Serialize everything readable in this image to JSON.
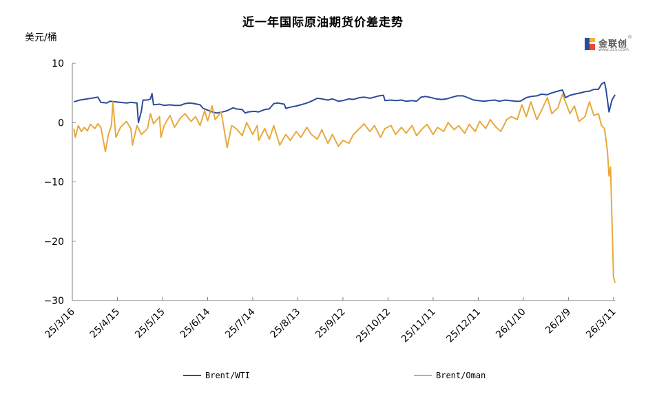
{
  "title": "近一年国际原油期货价差走势",
  "unit_label": "美元/桶",
  "logo": {
    "name": "金联创",
    "sub": "www.315i.com",
    "reg": "®",
    "icon": "jlc-logo-icon"
  },
  "colors": {
    "brent_wti": "#2B4C9B",
    "brent_oman": "#E8A93A",
    "axis": "#808080"
  },
  "chart_data": {
    "type": "line",
    "title": "近一年国际原油期货价差走势",
    "ylabel": "美元/桶",
    "xlabel": "",
    "ylim": [
      -30,
      10
    ],
    "yticks": [
      10,
      0,
      -10,
      -20,
      -30
    ],
    "xlim": [
      "2025-03-16",
      "2026-03-12"
    ],
    "xticks": [
      "25/3/16",
      "25/4/15",
      "25/5/15",
      "25/6/14",
      "25/7/14",
      "25/8/13",
      "25/9/12",
      "25/10/12",
      "25/11/11",
      "25/12/11",
      "26/1/10",
      "26/2/9",
      "26/3/11"
    ],
    "grid": false,
    "legend_position": "bottom",
    "series": [
      {
        "name": "Brent/WTI",
        "color": "#2B4C9B",
        "points": [
          [
            "2025-03-17",
            3.5
          ],
          [
            "2025-03-21",
            3.8
          ],
          [
            "2025-03-26",
            4.0
          ],
          [
            "2025-03-31",
            4.2
          ],
          [
            "2025-04-02",
            4.3
          ],
          [
            "2025-04-04",
            3.4
          ],
          [
            "2025-04-08",
            3.3
          ],
          [
            "2025-04-10",
            3.6
          ],
          [
            "2025-04-14",
            3.5
          ],
          [
            "2025-04-17",
            3.4
          ],
          [
            "2025-04-21",
            3.3
          ],
          [
            "2025-04-24",
            3.4
          ],
          [
            "2025-04-28",
            3.3
          ],
          [
            "2025-04-29",
            0.0
          ],
          [
            "2025-05-01",
            2.0
          ],
          [
            "2025-05-02",
            3.8
          ],
          [
            "2025-05-05",
            3.8
          ],
          [
            "2025-05-07",
            4.0
          ],
          [
            "2025-05-08",
            4.9
          ],
          [
            "2025-05-09",
            3.0
          ],
          [
            "2025-05-13",
            3.1
          ],
          [
            "2025-05-16",
            2.9
          ],
          [
            "2025-05-20",
            3.0
          ],
          [
            "2025-05-23",
            2.9
          ],
          [
            "2025-05-27",
            2.9
          ],
          [
            "2025-05-30",
            3.2
          ],
          [
            "2025-06-02",
            3.3
          ],
          [
            "2025-06-05",
            3.2
          ],
          [
            "2025-06-09",
            3.0
          ],
          [
            "2025-06-11",
            2.4
          ],
          [
            "2025-06-13",
            2.2
          ],
          [
            "2025-06-17",
            1.8
          ],
          [
            "2025-06-20",
            1.6
          ],
          [
            "2025-06-24",
            1.8
          ],
          [
            "2025-06-27",
            2.0
          ],
          [
            "2025-07-01",
            2.5
          ],
          [
            "2025-07-03",
            2.3
          ],
          [
            "2025-07-07",
            2.2
          ],
          [
            "2025-07-09",
            1.6
          ],
          [
            "2025-07-11",
            1.8
          ],
          [
            "2025-07-15",
            1.9
          ],
          [
            "2025-07-18",
            1.8
          ],
          [
            "2025-07-22",
            2.2
          ],
          [
            "2025-07-25",
            2.3
          ],
          [
            "2025-07-28",
            3.2
          ],
          [
            "2025-07-31",
            3.3
          ],
          [
            "2025-08-04",
            3.1
          ],
          [
            "2025-08-05",
            2.4
          ],
          [
            "2025-08-08",
            2.6
          ],
          [
            "2025-08-12",
            2.8
          ],
          [
            "2025-08-15",
            3.0
          ],
          [
            "2025-08-19",
            3.3
          ],
          [
            "2025-08-22",
            3.6
          ],
          [
            "2025-08-26",
            4.1
          ],
          [
            "2025-08-29",
            4.0
          ],
          [
            "2025-09-02",
            3.8
          ],
          [
            "2025-09-05",
            4.0
          ],
          [
            "2025-09-09",
            3.6
          ],
          [
            "2025-09-12",
            3.7
          ],
          [
            "2025-09-16",
            4.0
          ],
          [
            "2025-09-19",
            3.9
          ],
          [
            "2025-09-23",
            4.2
          ],
          [
            "2025-09-26",
            4.3
          ],
          [
            "2025-09-30",
            4.1
          ],
          [
            "2025-10-03",
            4.3
          ],
          [
            "2025-10-06",
            4.5
          ],
          [
            "2025-10-09",
            4.6
          ],
          [
            "2025-10-10",
            3.7
          ],
          [
            "2025-10-14",
            3.8
          ],
          [
            "2025-10-17",
            3.7
          ],
          [
            "2025-10-21",
            3.8
          ],
          [
            "2025-10-24",
            3.6
          ],
          [
            "2025-10-28",
            3.7
          ],
          [
            "2025-10-31",
            3.6
          ],
          [
            "2025-11-03",
            4.3
          ],
          [
            "2025-11-06",
            4.4
          ],
          [
            "2025-11-10",
            4.2
          ],
          [
            "2025-11-13",
            4.0
          ],
          [
            "2025-11-17",
            3.9
          ],
          [
            "2025-11-20",
            4.0
          ],
          [
            "2025-11-24",
            4.3
          ],
          [
            "2025-11-27",
            4.5
          ],
          [
            "2025-12-01",
            4.5
          ],
          [
            "2025-12-04",
            4.2
          ],
          [
            "2025-12-08",
            3.8
          ],
          [
            "2025-12-11",
            3.7
          ],
          [
            "2025-12-15",
            3.6
          ],
          [
            "2025-12-18",
            3.7
          ],
          [
            "2025-12-22",
            3.8
          ],
          [
            "2025-12-25",
            3.6
          ],
          [
            "2025-12-29",
            3.8
          ],
          [
            "2026-01-01",
            3.7
          ],
          [
            "2026-01-05",
            3.6
          ],
          [
            "2026-01-08",
            3.6
          ],
          [
            "2026-01-12",
            4.2
          ],
          [
            "2026-01-15",
            4.4
          ],
          [
            "2026-01-19",
            4.5
          ],
          [
            "2026-01-22",
            4.8
          ],
          [
            "2026-01-26",
            4.7
          ],
          [
            "2026-01-29",
            5.0
          ],
          [
            "2026-02-02",
            5.3
          ],
          [
            "2026-02-05",
            5.5
          ],
          [
            "2026-02-07",
            4.2
          ],
          [
            "2026-02-10",
            4.6
          ],
          [
            "2026-02-13",
            4.8
          ],
          [
            "2026-02-17",
            5.0
          ],
          [
            "2026-02-20",
            5.2
          ],
          [
            "2026-02-23",
            5.3
          ],
          [
            "2026-02-26",
            5.6
          ],
          [
            "2026-03-01",
            5.6
          ],
          [
            "2026-03-03",
            6.5
          ],
          [
            "2026-03-05",
            6.8
          ],
          [
            "2026-03-06",
            5.6
          ],
          [
            "2026-03-08",
            1.8
          ],
          [
            "2026-03-10",
            3.8
          ],
          [
            "2026-03-12",
            4.7
          ]
        ]
      },
      {
        "name": "Brent/Oman",
        "color": "#E8A93A",
        "points": [
          [
            "2025-03-17",
            -1.0
          ],
          [
            "2025-03-18",
            -2.5
          ],
          [
            "2025-03-20",
            -0.5
          ],
          [
            "2025-03-22",
            -1.5
          ],
          [
            "2025-03-24",
            -0.8
          ],
          [
            "2025-03-26",
            -1.4
          ],
          [
            "2025-03-28",
            -0.3
          ],
          [
            "2025-03-31",
            -1.0
          ],
          [
            "2025-04-02",
            -0.2
          ],
          [
            "2025-04-04",
            -0.8
          ],
          [
            "2025-04-07",
            -4.9
          ],
          [
            "2025-04-09",
            -2.0
          ],
          [
            "2025-04-11",
            -0.5
          ],
          [
            "2025-04-12",
            3.5
          ],
          [
            "2025-04-14",
            -2.5
          ],
          [
            "2025-04-17",
            -0.8
          ],
          [
            "2025-04-21",
            0.2
          ],
          [
            "2025-04-24",
            -1.0
          ],
          [
            "2025-04-25",
            -3.8
          ],
          [
            "2025-04-28",
            -0.5
          ],
          [
            "2025-05-01",
            -2.0
          ],
          [
            "2025-05-05",
            -1.0
          ],
          [
            "2025-05-07",
            1.5
          ],
          [
            "2025-05-09",
            -0.2
          ],
          [
            "2025-05-13",
            1.0
          ],
          [
            "2025-05-14",
            -2.5
          ],
          [
            "2025-05-16",
            -0.5
          ],
          [
            "2025-05-20",
            1.2
          ],
          [
            "2025-05-23",
            -0.8
          ],
          [
            "2025-05-27",
            0.8
          ],
          [
            "2025-05-30",
            1.5
          ],
          [
            "2025-06-03",
            0.2
          ],
          [
            "2025-06-06",
            1.0
          ],
          [
            "2025-06-09",
            -0.5
          ],
          [
            "2025-06-12",
            2.0
          ],
          [
            "2025-06-14",
            0.3
          ],
          [
            "2025-06-17",
            2.8
          ],
          [
            "2025-06-19",
            0.5
          ],
          [
            "2025-06-23",
            1.8
          ],
          [
            "2025-06-25",
            -1.2
          ],
          [
            "2025-06-27",
            -4.2
          ],
          [
            "2025-06-30",
            -0.5
          ],
          [
            "2025-07-03",
            -1.0
          ],
          [
            "2025-07-07",
            -2.2
          ],
          [
            "2025-07-10",
            0.0
          ],
          [
            "2025-07-14",
            -2.0
          ],
          [
            "2025-07-17",
            -0.5
          ],
          [
            "2025-07-18",
            -3.0
          ],
          [
            "2025-07-22",
            -1.0
          ],
          [
            "2025-07-25",
            -2.8
          ],
          [
            "2025-07-28",
            -0.5
          ],
          [
            "2025-08-01",
            -3.8
          ],
          [
            "2025-08-05",
            -2.0
          ],
          [
            "2025-08-08",
            -3.0
          ],
          [
            "2025-08-12",
            -1.5
          ],
          [
            "2025-08-15",
            -2.5
          ],
          [
            "2025-08-19",
            -0.8
          ],
          [
            "2025-08-22",
            -2.0
          ],
          [
            "2025-08-26",
            -2.8
          ],
          [
            "2025-08-29",
            -1.2
          ],
          [
            "2025-09-02",
            -3.5
          ],
          [
            "2025-09-05",
            -2.0
          ],
          [
            "2025-09-09",
            -4.0
          ],
          [
            "2025-09-12",
            -3.0
          ],
          [
            "2025-09-16",
            -3.5
          ],
          [
            "2025-09-19",
            -2.0
          ],
          [
            "2025-09-23",
            -1.0
          ],
          [
            "2025-09-26",
            -0.2
          ],
          [
            "2025-09-30",
            -1.5
          ],
          [
            "2025-10-03",
            -0.5
          ],
          [
            "2025-10-07",
            -2.5
          ],
          [
            "2025-10-10",
            -1.0
          ],
          [
            "2025-10-14",
            -0.5
          ],
          [
            "2025-10-17",
            -2.0
          ],
          [
            "2025-10-21",
            -0.8
          ],
          [
            "2025-10-24",
            -1.8
          ],
          [
            "2025-10-28",
            -0.5
          ],
          [
            "2025-10-31",
            -2.2
          ],
          [
            "2025-11-04",
            -1.0
          ],
          [
            "2025-11-07",
            -0.3
          ],
          [
            "2025-11-11",
            -2.0
          ],
          [
            "2025-11-14",
            -0.8
          ],
          [
            "2025-11-18",
            -1.5
          ],
          [
            "2025-11-21",
            0.0
          ],
          [
            "2025-11-25",
            -1.2
          ],
          [
            "2025-11-28",
            -0.5
          ],
          [
            "2025-12-02",
            -1.8
          ],
          [
            "2025-12-05",
            -0.3
          ],
          [
            "2025-12-09",
            -1.5
          ],
          [
            "2025-12-12",
            0.2
          ],
          [
            "2025-12-16",
            -1.0
          ],
          [
            "2025-12-19",
            0.5
          ],
          [
            "2025-12-23",
            -0.8
          ],
          [
            "2025-12-26",
            -1.5
          ],
          [
            "2025-12-30",
            0.5
          ],
          [
            "2026-01-02",
            1.0
          ],
          [
            "2026-01-06",
            0.5
          ],
          [
            "2026-01-09",
            3.0
          ],
          [
            "2026-01-12",
            1.0
          ],
          [
            "2026-01-15",
            3.5
          ],
          [
            "2026-01-19",
            0.5
          ],
          [
            "2026-01-22",
            2.0
          ],
          [
            "2026-01-26",
            4.2
          ],
          [
            "2026-01-29",
            1.5
          ],
          [
            "2026-02-02",
            2.5
          ],
          [
            "2026-02-05",
            4.8
          ],
          [
            "2026-02-07",
            3.5
          ],
          [
            "2026-02-10",
            1.5
          ],
          [
            "2026-02-13",
            2.8
          ],
          [
            "2026-02-16",
            0.2
          ],
          [
            "2026-02-20",
            1.0
          ],
          [
            "2026-02-23",
            3.5
          ],
          [
            "2026-02-26",
            1.2
          ],
          [
            "2026-03-01",
            1.5
          ],
          [
            "2026-03-03",
            -0.5
          ],
          [
            "2026-03-05",
            -1.0
          ],
          [
            "2026-03-06",
            -2.8
          ],
          [
            "2026-03-07",
            -5.0
          ],
          [
            "2026-03-08",
            -9.0
          ],
          [
            "2026-03-09",
            -7.5
          ],
          [
            "2026-03-11",
            -26.0
          ],
          [
            "2026-03-12",
            -27.0
          ]
        ]
      }
    ]
  },
  "legend": [
    {
      "label": "Brent/WTI"
    },
    {
      "label": "Brent/Oman"
    }
  ]
}
